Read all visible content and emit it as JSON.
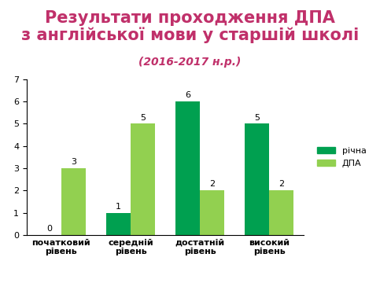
{
  "chart_data": {
    "type": "bar",
    "title": "Результати проходження ДПА\nз англійської мови у старшій школі",
    "subtitle": "(2016-2017 н.р.)",
    "categories": [
      "початковий\nрівень",
      "середній\nрівень",
      "достатній\nрівень",
      "високий\nрівень"
    ],
    "series": [
      {
        "name": "річна",
        "color": "#00a050",
        "values": [
          0,
          1,
          6,
          5
        ]
      },
      {
        "name": "ДПА",
        "color": "#92d050",
        "values": [
          3,
          5,
          2,
          2
        ]
      }
    ],
    "ylim": [
      0,
      7
    ],
    "yticks": [
      0,
      1,
      2,
      3,
      4,
      5,
      6,
      7
    ],
    "grid": false,
    "legend": "right",
    "data_labels": true
  }
}
